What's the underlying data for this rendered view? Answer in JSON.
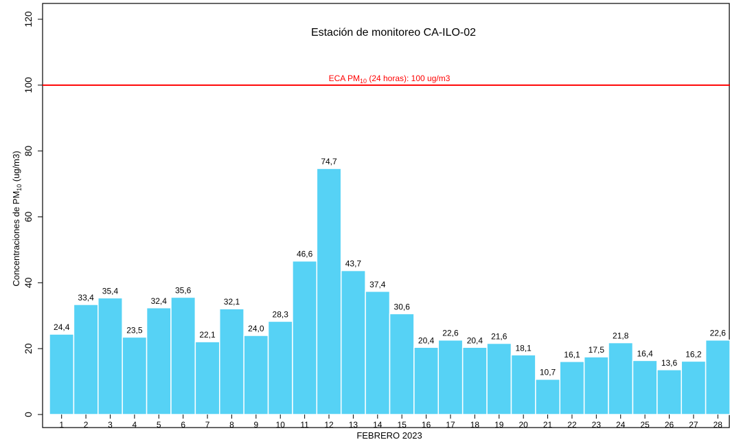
{
  "chart_data": {
    "type": "bar",
    "title": "Estación de monitoreo  CA-ILO-02",
    "x_label": "FEBRERO 2023",
    "y_label": {
      "main": "Concentraciones de PM",
      "sub": "10",
      "rest": " (ug/m3)"
    },
    "categories": [
      "1",
      "2",
      "3",
      "4",
      "5",
      "6",
      "7",
      "8",
      "9",
      "10",
      "11",
      "12",
      "13",
      "14",
      "15",
      "16",
      "17",
      "18",
      "19",
      "20",
      "21",
      "22",
      "23",
      "24",
      "25",
      "26",
      "27",
      "28"
    ],
    "values": [
      24.4,
      33.4,
      35.4,
      23.5,
      32.4,
      35.6,
      22.1,
      32.1,
      24.0,
      28.3,
      46.6,
      74.7,
      43.7,
      37.4,
      30.6,
      20.4,
      22.6,
      20.4,
      21.6,
      18.1,
      10.7,
      16.1,
      17.5,
      21.8,
      16.4,
      13.6,
      16.2,
      22.6
    ],
    "value_labels": [
      "24,4",
      "33,4",
      "35,4",
      "23,5",
      "32,4",
      "35,6",
      "22,1",
      "32,1",
      "24,0",
      "28,3",
      "46,6",
      "74,7",
      "43,7",
      "37,4",
      "30,6",
      "20,4",
      "22,6",
      "20,4",
      "21,6",
      "18,1",
      "10,7",
      "16,1",
      "17,5",
      "21,8",
      "16,4",
      "13,6",
      "16,2",
      "22,6"
    ],
    "color": "#56d2f5",
    "ylim": [
      0,
      120
    ],
    "yticks": [
      0,
      20,
      40,
      60,
      80,
      100,
      120
    ],
    "reference_line": {
      "value": 100,
      "color": "#ff0000",
      "label": {
        "main": "ECA PM",
        "sub": "10",
        "rest": " (24 horas): 100 ug/m3"
      }
    }
  }
}
